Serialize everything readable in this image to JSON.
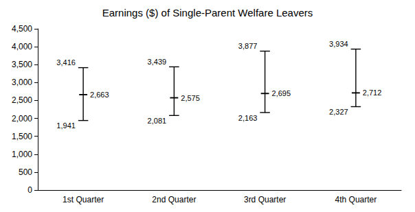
{
  "chart_data": {
    "type": "range",
    "title": "Earnings ($) of Single-Parent Welfare Leavers",
    "categories": [
      "1st Quarter",
      "2nd Quarter",
      "3rd Quarter",
      "4th Quarter"
    ],
    "values": [
      2663,
      2575,
      2695,
      2712
    ],
    "value_labels": [
      "2,663",
      "2,575",
      "2,695",
      "2,712"
    ],
    "high": [
      3416,
      3439,
      3877,
      3934
    ],
    "high_labels": [
      "3,416",
      "3,439",
      "3,877",
      "3,934"
    ],
    "low": [
      1941,
      2081,
      2163,
      2327
    ],
    "low_labels": [
      "1,941",
      "2,081",
      "2,163",
      "2,327"
    ],
    "color": "#000000",
    "ylim": [
      0,
      4500
    ],
    "yticks": [
      0,
      500,
      {
        "value": 1000,
        "label": "1,000"
      },
      {
        "value": 1500,
        "label": "1,500"
      },
      {
        "value": 2000,
        "label": "2,000"
      },
      {
        "value": 2500,
        "label": "2,500"
      },
      {
        "value": 3000,
        "label": "3,000"
      },
      {
        "value": 3500,
        "label": "3,500"
      },
      {
        "value": 4000,
        "label": "4,000"
      },
      {
        "value": 4500,
        "label": "4,500"
      }
    ],
    "grid": false,
    "data_labels": true
  }
}
